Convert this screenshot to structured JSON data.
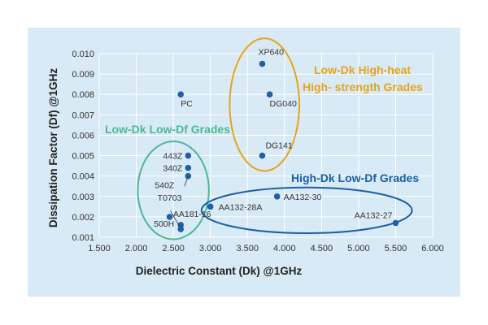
{
  "chart_data": {
    "type": "scatter",
    "xlabel": "Dielectric Constant (Dk)  @1GHz",
    "ylabel": "Dissipation Factor (Df)  @1GHz",
    "xlim": [
      1.5,
      6.0
    ],
    "ylim": [
      0.001,
      0.01
    ],
    "x_ticks": [
      "1.500",
      "2.000",
      "2.500",
      "3.000",
      "3.500",
      "4.000",
      "4.500",
      "5.000",
      "5.500",
      "6.000"
    ],
    "y_ticks": [
      "0.001",
      "0.002",
      "0.003",
      "0.004",
      "0.005",
      "0.006",
      "0.007",
      "0.008",
      "0.009",
      "0.010"
    ],
    "grid": true,
    "marker_color": "#1f5fa8",
    "points": [
      {
        "label": "XP640",
        "x": 3.7,
        "y": 0.0095
      },
      {
        "label": "PC",
        "x": 2.6,
        "y": 0.008
      },
      {
        "label": "DG040",
        "x": 3.8,
        "y": 0.008
      },
      {
        "label": "DG141",
        "x": 3.7,
        "y": 0.005
      },
      {
        "label": "443Z",
        "x": 2.7,
        "y": 0.005
      },
      {
        "label": "340Z",
        "x": 2.7,
        "y": 0.0044
      },
      {
        "label": "540Z",
        "x": 2.7,
        "y": 0.004
      },
      {
        "label": "T0703",
        "x": 2.45,
        "y": 0.002
      },
      {
        "label": "AA181-16",
        "x": 2.6,
        "y": 0.0016
      },
      {
        "label": "500H",
        "x": 2.6,
        "y": 0.0014
      },
      {
        "label": "AA132-28A",
        "x": 3.0,
        "y": 0.0025
      },
      {
        "label": "AA132-30",
        "x": 3.9,
        "y": 0.003
      },
      {
        "label": "AA132-27",
        "x": 5.5,
        "y": 0.0017
      }
    ],
    "groups": [
      {
        "label": "Low-Dk High-heat",
        "label2": "High- strength Grades",
        "color": "#e8a317"
      },
      {
        "label": "Low-Dk Low-Df Grades",
        "label2": "",
        "color": "#4cb896"
      },
      {
        "label": "High-Dk Low-Df Grades",
        "label2": "",
        "color": "#1a5fa3"
      }
    ]
  }
}
